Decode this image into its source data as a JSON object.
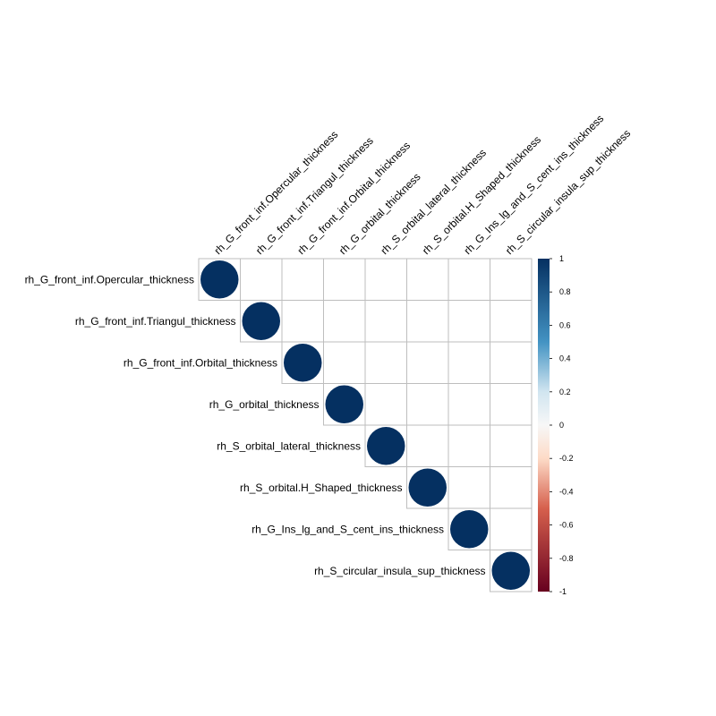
{
  "chart_data": {
    "type": "heatmap",
    "style": "upper-triangle correlation plot, circles",
    "title": "",
    "variables": [
      "rh_G_front_inf.Opercular_thickness",
      "rh_G_front_inf.Triangul_thickness",
      "rh_G_front_inf.Orbital_thickness",
      "rh_G_orbital_thickness",
      "rh_S_orbital_lateral_thickness",
      "rh_S_orbital.H_Shaped_thickness",
      "rh_G_Ins_lg_and_S_cent_ins_thickness",
      "rh_S_circular_insula_sup_thickness"
    ],
    "matrix": [
      [
        1,
        0,
        0,
        0,
        0,
        0,
        0,
        0
      ],
      [
        0,
        1,
        0,
        0,
        0,
        0,
        0,
        0
      ],
      [
        0,
        0,
        1,
        0,
        0,
        0,
        0,
        0
      ],
      [
        0,
        0,
        0,
        1,
        0,
        0,
        0,
        0
      ],
      [
        0,
        0,
        0,
        0,
        1,
        0,
        0,
        0
      ],
      [
        0,
        0,
        0,
        0,
        0,
        1,
        0,
        0
      ],
      [
        0,
        0,
        0,
        0,
        0,
        0,
        1,
        0
      ],
      [
        0,
        0,
        0,
        0,
        0,
        0,
        0,
        1
      ]
    ],
    "colorbar": {
      "range": [
        -1,
        1
      ],
      "ticks": [
        "1",
        "0.8",
        "0.6",
        "0.4",
        "0.2",
        "0",
        "-0.2",
        "-0.4",
        "-0.6",
        "-0.8",
        "-1"
      ],
      "colors": {
        "neg1": "#67001F",
        "neg05": "#F4A582",
        "zero": "#F7F7F7",
        "pos05": "#92C5DE",
        "pos1": "#053061"
      }
    },
    "grid_color": "#BEBEBE"
  }
}
